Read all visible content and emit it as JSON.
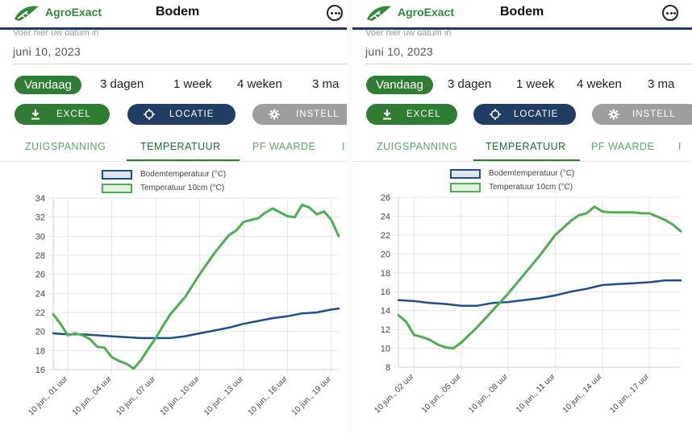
{
  "screens": [
    {
      "header": {
        "logo_text": "AgroExact",
        "title": "Bodem"
      },
      "date": {
        "placeholder": "Voer hier uw datum in",
        "value": "juni 10, 2023"
      },
      "ranges": [
        "Vandaag",
        "3 dagen",
        "1 week",
        "4 weken",
        "3 ma"
      ],
      "buttons": {
        "excel": "EXCEL",
        "locatie": "LOCATIE",
        "instellingen": "INSTELL"
      },
      "tabs": [
        "ZUIGSPANNING",
        "TEMPERATUUR",
        "PF WAARDE",
        "I"
      ],
      "active_tab": "TEMPERATUUR",
      "chart_data": {
        "type": "line",
        "legend": [
          "Bodemtemperatuur (°C)",
          "Temperatuur 10cm (°C)"
        ],
        "legend_placement": "top",
        "grid": true,
        "ylim": [
          16,
          34
        ],
        "yticks": [
          16,
          18,
          20,
          22,
          24,
          26,
          28,
          30,
          32,
          34
        ],
        "xlim": [
          0,
          19.5
        ],
        "xticks": [
          {
            "x": 1,
            "label": "10 jun., 01 uur"
          },
          {
            "x": 4,
            "label": "10 jun., 04 uur"
          },
          {
            "x": 7,
            "label": "10 jun., 07 uur"
          },
          {
            "x": 10,
            "label": "10 jun., 10 uur"
          },
          {
            "x": 13,
            "label": "10 jun., 13 uur"
          },
          {
            "x": 16,
            "label": "10 jun., 16 uur"
          },
          {
            "x": 19,
            "label": "10 jun., 19 uur"
          }
        ],
        "series": [
          {
            "name": "Bodemtemperatuur (°C)",
            "color": "#1f4e8c",
            "x": [
              0,
              1,
              2,
              3,
              4,
              5,
              6,
              7,
              8,
              9,
              10,
              11,
              12,
              13,
              14,
              15,
              16,
              17,
              18,
              19,
              19.5
            ],
            "y": [
              19.8,
              19.7,
              19.7,
              19.6,
              19.5,
              19.4,
              19.3,
              19.3,
              19.3,
              19.5,
              19.8,
              20.1,
              20.4,
              20.8,
              21.1,
              21.4,
              21.6,
              21.9,
              22.0,
              22.3,
              22.4
            ]
          },
          {
            "name": "Temperatuur 10cm (°C)",
            "color": "#4caf50",
            "x": [
              0,
              0.5,
              1,
              1.5,
              2,
              2.5,
              3,
              3.5,
              4,
              4.5,
              5,
              5.5,
              6,
              6.5,
              7,
              7.5,
              8,
              9,
              10,
              11,
              12,
              12.5,
              13,
              14,
              14.5,
              15,
              15.5,
              16,
              16.5,
              17,
              17.5,
              18,
              18.5,
              19,
              19.5
            ],
            "y": [
              21.8,
              20.8,
              19.6,
              19.8,
              19.6,
              19.2,
              18.4,
              18.3,
              17.3,
              16.9,
              16.6,
              16.1,
              17.0,
              18.2,
              19.3,
              20.6,
              21.8,
              23.6,
              26.0,
              28.2,
              30.1,
              30.6,
              31.5,
              31.9,
              32.5,
              32.9,
              32.5,
              32.1,
              32.0,
              33.3,
              33.0,
              32.3,
              32.6,
              31.7,
              30.0
            ]
          }
        ]
      }
    },
    {
      "header": {
        "logo_text": "AgroExact",
        "title": "Bodem"
      },
      "date": {
        "placeholder": "Voer hier uw datum in",
        "value": "juni 10, 2023"
      },
      "ranges": [
        "Vandaag",
        "3 dagen",
        "1 week",
        "4 weken",
        "3 ma"
      ],
      "buttons": {
        "excel": "EXCEL",
        "locatie": "LOCATIE",
        "instellingen": "INSTELL"
      },
      "tabs": [
        "ZUIGSPANNING",
        "TEMPERATUUR",
        "PF WAARDE",
        "I"
      ],
      "active_tab": "TEMPERATUUR",
      "chart_data": {
        "type": "line",
        "legend": [
          "Bodemtemperatuur (°C)",
          "Temperatuur 10cm (°C)"
        ],
        "legend_placement": "top",
        "grid": true,
        "ylim": [
          8,
          26
        ],
        "yticks": [
          8,
          10,
          12,
          14,
          16,
          18,
          20,
          22,
          24,
          26
        ],
        "xlim": [
          1,
          19
        ],
        "xticks": [
          {
            "x": 2,
            "label": "10 jun., 02 uur"
          },
          {
            "x": 5,
            "label": "10 jun., 05 uur"
          },
          {
            "x": 8,
            "label": "10 jun., 08 uur"
          },
          {
            "x": 11,
            "label": "10 jun., 11 uur"
          },
          {
            "x": 14,
            "label": "10 jun., 14 uur"
          },
          {
            "x": 17,
            "label": "10 jun., 17 uur"
          }
        ],
        "series": [
          {
            "name": "Bodemtemperatuur (°C)",
            "color": "#1f4e8c",
            "x": [
              1,
              2,
              3,
              4,
              5,
              6,
              7,
              8,
              9,
              10,
              11,
              12,
              13,
              14,
              15,
              16,
              17,
              18,
              19
            ],
            "y": [
              15.1,
              15.0,
              14.8,
              14.7,
              14.5,
              14.5,
              14.8,
              14.9,
              15.1,
              15.3,
              15.6,
              16.0,
              16.3,
              16.7,
              16.8,
              16.9,
              17.0,
              17.2,
              17.2
            ]
          },
          {
            "name": "Temperatuur 10cm (°C)",
            "color": "#4caf50",
            "x": [
              1,
              1.5,
              2,
              2.5,
              3,
              3.5,
              4,
              4.5,
              5,
              6,
              7,
              8,
              9,
              10,
              11,
              12,
              12.5,
              13,
              13.5,
              14,
              14.5,
              15,
              16,
              16.5,
              17,
              18,
              18.5,
              19
            ],
            "y": [
              13.5,
              12.8,
              11.4,
              11.2,
              10.9,
              10.4,
              10.1,
              10.0,
              10.6,
              12.2,
              14.0,
              15.8,
              17.8,
              19.8,
              22.0,
              23.5,
              24.1,
              24.3,
              25.0,
              24.5,
              24.4,
              24.4,
              24.4,
              24.3,
              24.3,
              23.6,
              23.1,
              22.4
            ]
          }
        ]
      }
    }
  ]
}
